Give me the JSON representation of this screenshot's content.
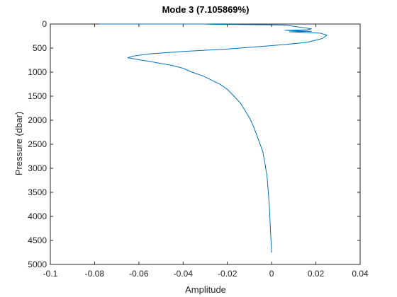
{
  "chart_data": {
    "type": "line",
    "title": "Mode 3 (7.105869%)",
    "xlabel": "Amplitude",
    "ylabel": "Pressure (dbar)",
    "xlim": [
      -0.1,
      0.04
    ],
    "ylim": [
      0,
      5000
    ],
    "y_reversed": true,
    "grid": false,
    "xticks": [
      "-0.1",
      "-0.08",
      "-0.06",
      "-0.04",
      "-0.02",
      "0",
      "0.02",
      "0.04"
    ],
    "xtick_values": [
      -0.1,
      -0.08,
      -0.06,
      -0.04,
      -0.02,
      0,
      0.02,
      0.04
    ],
    "yticks": [
      "0",
      "500",
      "1000",
      "1500",
      "2000",
      "2500",
      "3000",
      "3500",
      "4000",
      "4500",
      "5000"
    ],
    "ytick_values": [
      0,
      500,
      1000,
      1500,
      2000,
      2500,
      3000,
      3500,
      4000,
      4500,
      5000
    ],
    "line_color": "#0072bd",
    "series": [
      {
        "points": [
          [
            -0.078,
            0
          ],
          [
            -0.03,
            0
          ],
          [
            -0.027,
            5
          ],
          [
            0.006,
            20
          ],
          [
            0.012,
            60
          ],
          [
            0.018,
            100
          ],
          [
            0.016,
            120
          ],
          [
            0.006,
            130
          ],
          [
            0.018,
            150
          ],
          [
            0.008,
            160
          ],
          [
            0.014,
            175
          ],
          [
            0.022,
            190
          ],
          [
            0.025,
            230
          ],
          [
            0.023,
            300
          ],
          [
            0.016,
            380
          ],
          [
            0.005,
            430
          ],
          [
            -0.006,
            470
          ],
          [
            -0.02,
            520
          ],
          [
            -0.04,
            570
          ],
          [
            -0.055,
            620
          ],
          [
            -0.063,
            670
          ],
          [
            -0.065,
            700
          ],
          [
            -0.06,
            740
          ],
          [
            -0.055,
            780
          ],
          [
            -0.05,
            820
          ],
          [
            -0.045,
            860
          ],
          [
            -0.04,
            920
          ],
          [
            -0.036,
            1000
          ],
          [
            -0.031,
            1080
          ],
          [
            -0.027,
            1170
          ],
          [
            -0.023,
            1260
          ],
          [
            -0.02,
            1360
          ],
          [
            -0.017,
            1500
          ],
          [
            -0.014,
            1650
          ],
          [
            -0.012,
            1800
          ],
          [
            -0.01,
            1950
          ],
          [
            -0.008,
            2150
          ],
          [
            -0.006,
            2400
          ],
          [
            -0.004,
            2650
          ],
          [
            -0.003,
            2900
          ],
          [
            -0.002,
            3200
          ],
          [
            -0.0015,
            3500
          ],
          [
            -0.001,
            3800
          ],
          [
            -0.0007,
            4100
          ],
          [
            -0.0004,
            4400
          ],
          [
            0,
            4750
          ]
        ]
      }
    ]
  }
}
